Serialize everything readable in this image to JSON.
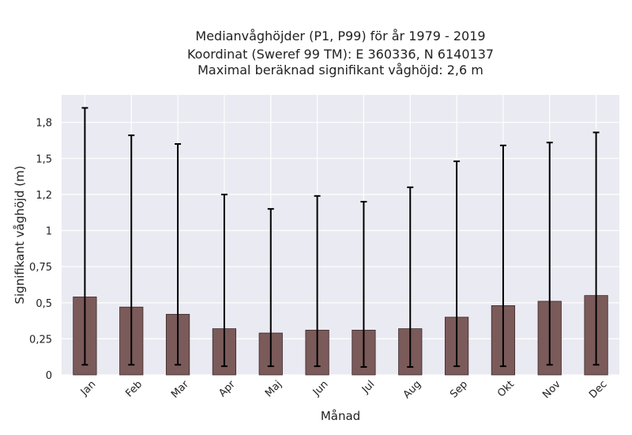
{
  "chart_data": {
    "type": "bar",
    "title_lines": [
      "Medianvåghöjder (P1, P99) för år 1979 - 2019",
      "Koordinat (Sweref 99 TM): E 360336, N 6140137",
      "Maximal beräknad signifikant våghöjd: 2,6 m"
    ],
    "xlabel": "Månad",
    "ylabel": "Signifikant våghöjd (m)",
    "categories": [
      "Jan",
      "Feb",
      "Mar",
      "Apr",
      "Maj",
      "Jun",
      "Jul",
      "Aug",
      "Sep",
      "Okt",
      "Nov",
      "Dec"
    ],
    "values": [
      0.54,
      0.47,
      0.42,
      0.32,
      0.29,
      0.31,
      0.31,
      0.32,
      0.4,
      0.48,
      0.51,
      0.55
    ],
    "p1": [
      0.07,
      0.07,
      0.07,
      0.06,
      0.06,
      0.06,
      0.055,
      0.055,
      0.06,
      0.06,
      0.07,
      0.07
    ],
    "p99": [
      1.85,
      1.66,
      1.6,
      1.25,
      1.15,
      1.24,
      1.2,
      1.3,
      1.48,
      1.59,
      1.61,
      1.68
    ],
    "yticks": [
      0,
      0.25,
      0.5,
      0.75,
      1,
      1.25,
      1.5,
      1.75
    ],
    "ytick_labels": [
      "0",
      "0,25",
      "0,5",
      "0,75",
      "1",
      "1,2",
      "1,5",
      "1,8"
    ],
    "ylim": [
      0,
      1.94
    ],
    "grid": true,
    "colors": {
      "bar": "#7b5a5a",
      "bar_edge": "#3a2a2a",
      "plot_bg": "#eaeaf2",
      "grid": "#ffffff",
      "error": "#000000"
    }
  }
}
